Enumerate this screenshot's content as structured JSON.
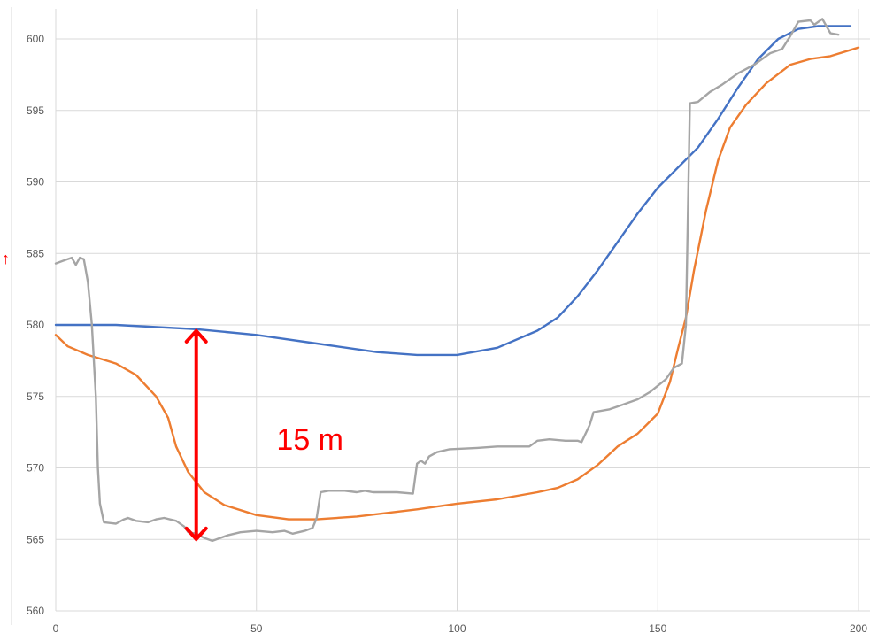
{
  "chart_data": {
    "type": "line",
    "xlim": [
      0,
      200
    ],
    "ylim": [
      560,
      602
    ],
    "x_ticks": [
      "0",
      "50",
      "100",
      "150",
      "200"
    ],
    "y_ticks": [
      "560",
      "565",
      "570",
      "575",
      "580",
      "585",
      "590",
      "595",
      "600"
    ],
    "grid": true,
    "legend": "none",
    "series": [
      {
        "color": "#4472c4",
        "points": [
          [
            0,
            580.0
          ],
          [
            15,
            580.0
          ],
          [
            35,
            579.7
          ],
          [
            50,
            579.3
          ],
          [
            65,
            578.7
          ],
          [
            80,
            578.1
          ],
          [
            90,
            577.9
          ],
          [
            100,
            577.9
          ],
          [
            110,
            578.4
          ],
          [
            120,
            579.6
          ],
          [
            125,
            580.5
          ],
          [
            130,
            582.0
          ],
          [
            135,
            583.8
          ],
          [
            140,
            585.8
          ],
          [
            145,
            587.8
          ],
          [
            150,
            589.6
          ],
          [
            155,
            591.0
          ],
          [
            160,
            592.4
          ],
          [
            165,
            594.4
          ],
          [
            170,
            596.6
          ],
          [
            175,
            598.6
          ],
          [
            180,
            600.0
          ],
          [
            185,
            600.7
          ],
          [
            190,
            600.9
          ],
          [
            198,
            600.9
          ]
        ]
      },
      {
        "color": "#ed7d31",
        "points": [
          [
            0,
            579.3
          ],
          [
            3,
            578.5
          ],
          [
            8,
            577.9
          ],
          [
            15,
            577.3
          ],
          [
            20,
            576.5
          ],
          [
            25,
            575.0
          ],
          [
            28,
            573.5
          ],
          [
            30,
            571.5
          ],
          [
            33,
            569.7
          ],
          [
            37,
            568.3
          ],
          [
            42,
            567.4
          ],
          [
            50,
            566.7
          ],
          [
            58,
            566.4
          ],
          [
            65,
            566.4
          ],
          [
            75,
            566.6
          ],
          [
            90,
            567.1
          ],
          [
            100,
            567.5
          ],
          [
            110,
            567.8
          ],
          [
            120,
            568.3
          ],
          [
            125,
            568.6
          ],
          [
            130,
            569.2
          ],
          [
            135,
            570.2
          ],
          [
            140,
            571.5
          ],
          [
            145,
            572.4
          ],
          [
            150,
            573.8
          ],
          [
            153,
            576.0
          ],
          [
            155,
            578.3
          ],
          [
            157,
            580.5
          ],
          [
            159,
            583.8
          ],
          [
            162,
            588.0
          ],
          [
            165,
            591.5
          ],
          [
            168,
            593.8
          ],
          [
            172,
            595.4
          ],
          [
            177,
            596.9
          ],
          [
            183,
            598.2
          ],
          [
            188,
            598.6
          ],
          [
            193,
            598.8
          ],
          [
            200,
            599.4
          ]
        ]
      },
      {
        "color": "#a5a5a5",
        "points": [
          [
            0,
            584.3
          ],
          [
            2,
            584.5
          ],
          [
            4,
            584.7
          ],
          [
            5,
            584.2
          ],
          [
            6,
            584.7
          ],
          [
            7,
            584.6
          ],
          [
            8,
            583.0
          ],
          [
            9,
            580.0
          ],
          [
            10,
            575.0
          ],
          [
            10.5,
            570.0
          ],
          [
            11,
            567.5
          ],
          [
            12,
            566.2
          ],
          [
            15,
            566.1
          ],
          [
            17,
            566.4
          ],
          [
            18,
            566.5
          ],
          [
            20,
            566.3
          ],
          [
            23,
            566.2
          ],
          [
            25,
            566.4
          ],
          [
            27,
            566.5
          ],
          [
            30,
            566.3
          ],
          [
            32,
            565.9
          ],
          [
            33,
            565.5
          ],
          [
            35,
            565.4
          ],
          [
            37,
            565.1
          ],
          [
            39,
            564.9
          ],
          [
            41,
            565.1
          ],
          [
            43,
            565.3
          ],
          [
            46,
            565.5
          ],
          [
            50,
            565.6
          ],
          [
            54,
            565.5
          ],
          [
            57,
            565.6
          ],
          [
            59,
            565.4
          ],
          [
            62,
            565.6
          ],
          [
            64,
            565.8
          ],
          [
            65,
            566.5
          ],
          [
            66,
            568.3
          ],
          [
            68,
            568.4
          ],
          [
            72,
            568.4
          ],
          [
            75,
            568.3
          ],
          [
            77,
            568.4
          ],
          [
            79,
            568.3
          ],
          [
            82,
            568.3
          ],
          [
            85,
            568.3
          ],
          [
            89,
            568.2
          ],
          [
            90,
            570.3
          ],
          [
            91,
            570.5
          ],
          [
            92,
            570.3
          ],
          [
            93,
            570.8
          ],
          [
            95,
            571.1
          ],
          [
            98,
            571.3
          ],
          [
            105,
            571.4
          ],
          [
            110,
            571.5
          ],
          [
            115,
            571.5
          ],
          [
            118,
            571.5
          ],
          [
            120,
            571.9
          ],
          [
            123,
            572.0
          ],
          [
            127,
            571.9
          ],
          [
            130,
            571.9
          ],
          [
            131,
            571.8
          ],
          [
            133,
            573.0
          ],
          [
            134,
            573.9
          ],
          [
            138,
            574.1
          ],
          [
            140,
            574.3
          ],
          [
            145,
            574.8
          ],
          [
            148,
            575.3
          ],
          [
            152,
            576.2
          ],
          [
            154,
            577.0
          ],
          [
            156,
            577.3
          ],
          [
            157,
            580.0
          ],
          [
            158,
            595.5
          ],
          [
            160,
            595.6
          ],
          [
            163,
            596.3
          ],
          [
            166,
            596.8
          ],
          [
            170,
            597.6
          ],
          [
            174,
            598.2
          ],
          [
            178,
            599.0
          ],
          [
            181,
            599.3
          ],
          [
            183,
            600.2
          ],
          [
            185,
            601.2
          ],
          [
            188,
            601.3
          ],
          [
            189,
            601.0
          ],
          [
            191,
            601.4
          ],
          [
            192,
            600.9
          ],
          [
            193,
            600.4
          ],
          [
            195,
            600.3
          ]
        ]
      }
    ],
    "annotations": [
      {
        "type": "double-arrow",
        "color": "#ff0000",
        "x": 35,
        "y_from": 579.7,
        "y_to": 564.9
      },
      {
        "type": "text",
        "text": "15 m",
        "color": "#ff0000",
        "x": 55,
        "y": 572.0
      }
    ]
  }
}
